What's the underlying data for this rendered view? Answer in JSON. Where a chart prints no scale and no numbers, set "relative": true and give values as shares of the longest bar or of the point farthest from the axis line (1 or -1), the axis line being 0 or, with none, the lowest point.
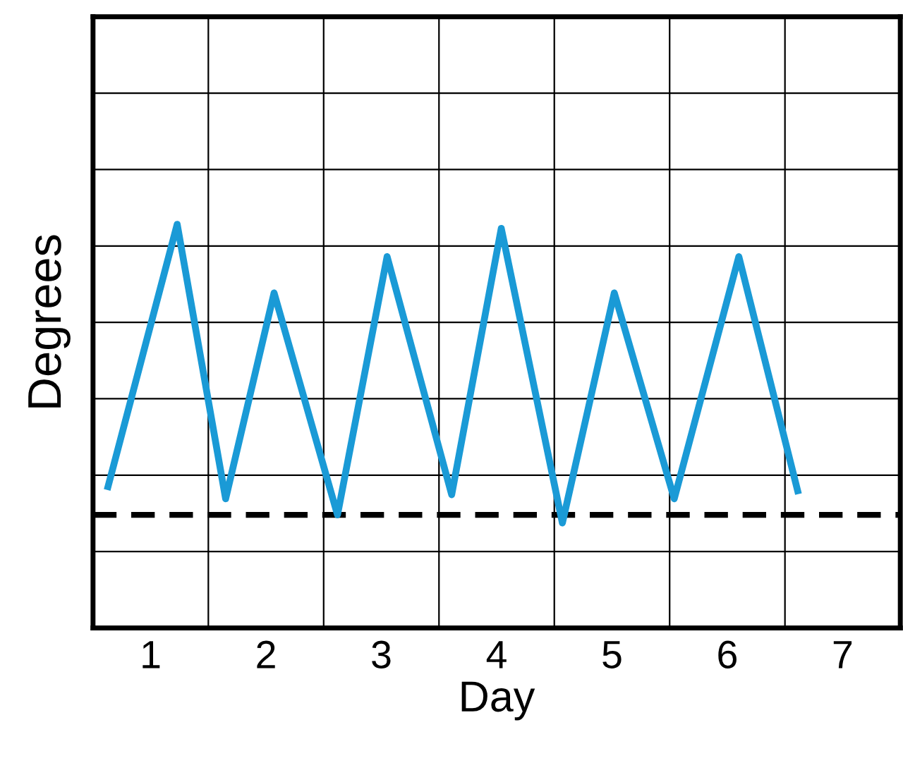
{
  "chart_data": {
    "type": "line",
    "relative": true,
    "xlabel": "Day",
    "ylabel": "Degrees",
    "x": [
      0.63,
      1.23,
      1.65,
      2.07,
      2.62,
      3.05,
      3.61,
      4.04,
      4.57,
      5.02,
      5.54,
      6.1,
      6.61
    ],
    "series": [
      {
        "color": "#1a9ad6",
        "values": [
          0.35,
          1,
          0.32,
          0.83,
          0.28,
          0.92,
          0.33,
          0.99,
          0.26,
          0.83,
          0.32,
          0.92,
          0.34
        ]
      }
    ],
    "xlim": [
      0.5,
      7.5
    ],
    "xticks": [
      1,
      2,
      3,
      4,
      5,
      6,
      7,
      {
        "value": 1.5,
        "label": null
      },
      {
        "value": 2.5,
        "label": null
      },
      {
        "value": 3.5,
        "label": null
      },
      {
        "value": 4.5,
        "label": null
      },
      {
        "value": 5.5,
        "label": null
      },
      {
        "value": 6.5,
        "label": null
      }
    ],
    "ref_lines": [
      {
        "axis": "y",
        "value": 0.28,
        "label": null,
        "color": "#000000",
        "line_style": "dashed"
      }
    ],
    "grid": true,
    "marker": "none",
    "line_style": "solid",
    "legend": false
  }
}
